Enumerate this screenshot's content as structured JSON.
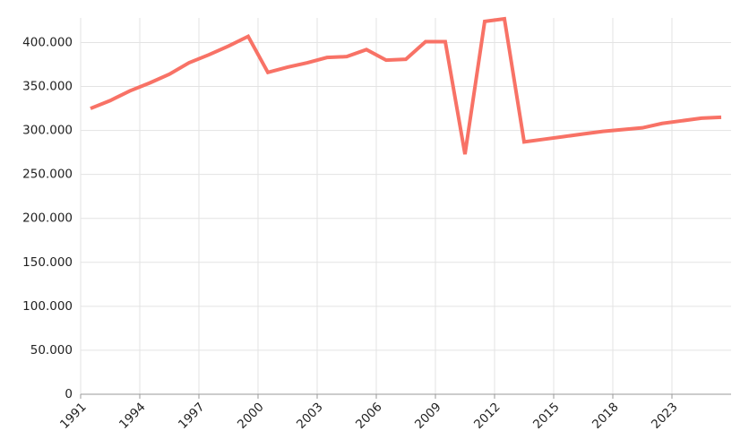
{
  "chart_data": {
    "type": "line",
    "categories": [
      "1991",
      null,
      null,
      "1994",
      null,
      null,
      "1997",
      null,
      null,
      "2000",
      null,
      null,
      "2003",
      null,
      null,
      "2006",
      null,
      null,
      "2009",
      null,
      null,
      "2012",
      null,
      null,
      "2015",
      null,
      null,
      "2018",
      null,
      null,
      "2023",
      null,
      null
    ],
    "series": [
      {
        "name": null,
        "color": "#f87266",
        "values": [
          325000,
          334000,
          345000,
          354000,
          364000,
          377000,
          386000,
          396000,
          407000,
          366000,
          372000,
          377000,
          383000,
          384000,
          392000,
          380000,
          381000,
          401000,
          401000,
          273000,
          424000,
          427000,
          287000,
          290000,
          293000,
          296000,
          299000,
          301000,
          303000,
          308000,
          311000,
          314000,
          315000
        ]
      }
    ],
    "ylim": [
      0,
      428000
    ],
    "yticks": [
      0,
      {
        "value": 50000,
        "label": "50.000"
      },
      {
        "value": 100000,
        "label": "100.000"
      },
      {
        "value": 150000,
        "label": "150.000"
      },
      {
        "value": 200000,
        "label": "200.000"
      },
      {
        "value": 250000,
        "label": "250.000"
      },
      {
        "value": 300000,
        "label": "300.000"
      },
      {
        "value": 350000,
        "label": "350.000"
      },
      {
        "value": 400000,
        "label": "400.000"
      }
    ],
    "grid": true
  }
}
